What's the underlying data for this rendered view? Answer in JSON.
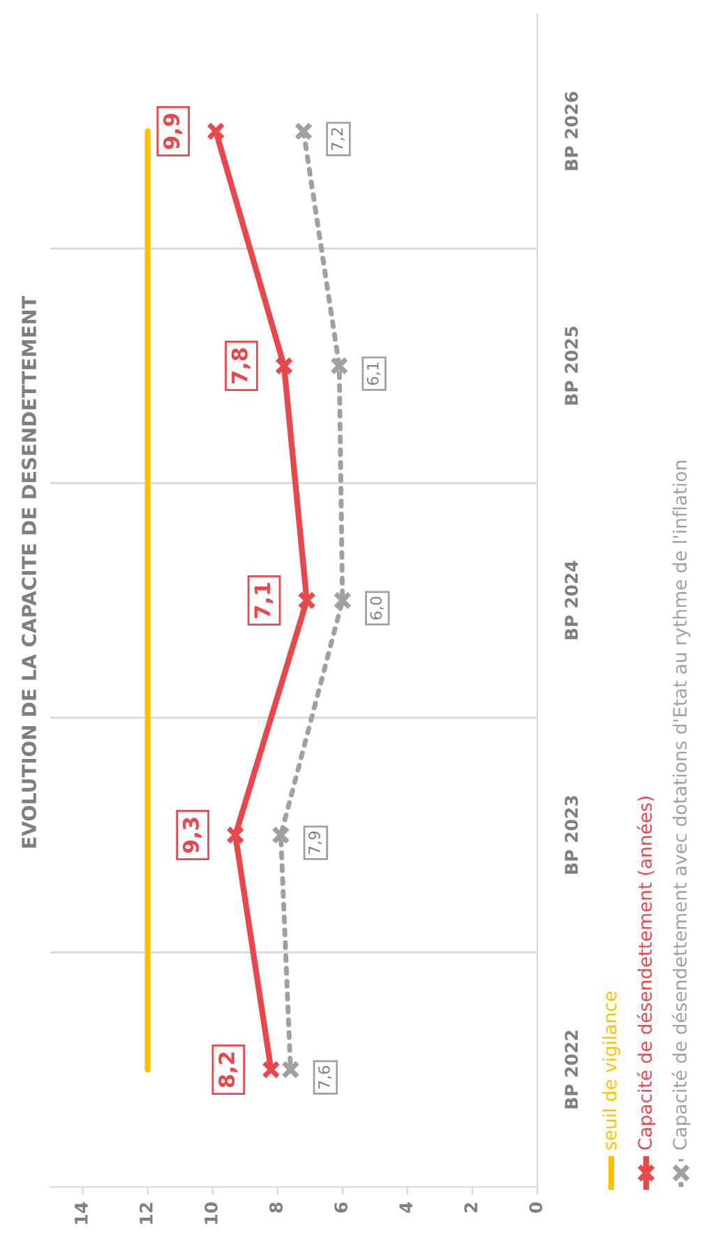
{
  "chart_data": {
    "type": "line",
    "orientation": "horizontal",
    "title": "EVOLUTION DE LA CAPACITE DE DESENDETTEMENT",
    "categories": [
      "BP 2026",
      "BP 2025",
      "BP 2024",
      "BP 2023",
      "BP 2022"
    ],
    "series": [
      {
        "name": "seuil de vigilance",
        "color": "#ffc000",
        "values": [
          12,
          12,
          12,
          12,
          12
        ],
        "marker": "none",
        "line_style": "solid"
      },
      {
        "name": "Capacité de désendettement (années)",
        "color": "#e8474c",
        "values": [
          9.9,
          7.8,
          7.1,
          9.3,
          8.2
        ],
        "marker": "cross",
        "line_style": "solid",
        "value_labels": [
          "9,9",
          "7,8",
          "7,1",
          "9,3",
          "8,2"
        ]
      },
      {
        "name": "Capacité de désendettement avec dotations d'Etat au rythme de l'inflation",
        "color": "#a0a0a0",
        "values": [
          7.2,
          6.1,
          6.0,
          7.9,
          7.6
        ],
        "marker": "cross",
        "line_style": "dotted",
        "value_labels": [
          "7,2",
          "6,1",
          "6,0",
          "7,9",
          "7,6"
        ]
      }
    ],
    "xlim": [
      15,
      0
    ],
    "xticks": [
      14,
      12,
      10,
      8,
      6,
      4,
      2,
      0
    ],
    "grid": "y",
    "legend": "bottom"
  }
}
